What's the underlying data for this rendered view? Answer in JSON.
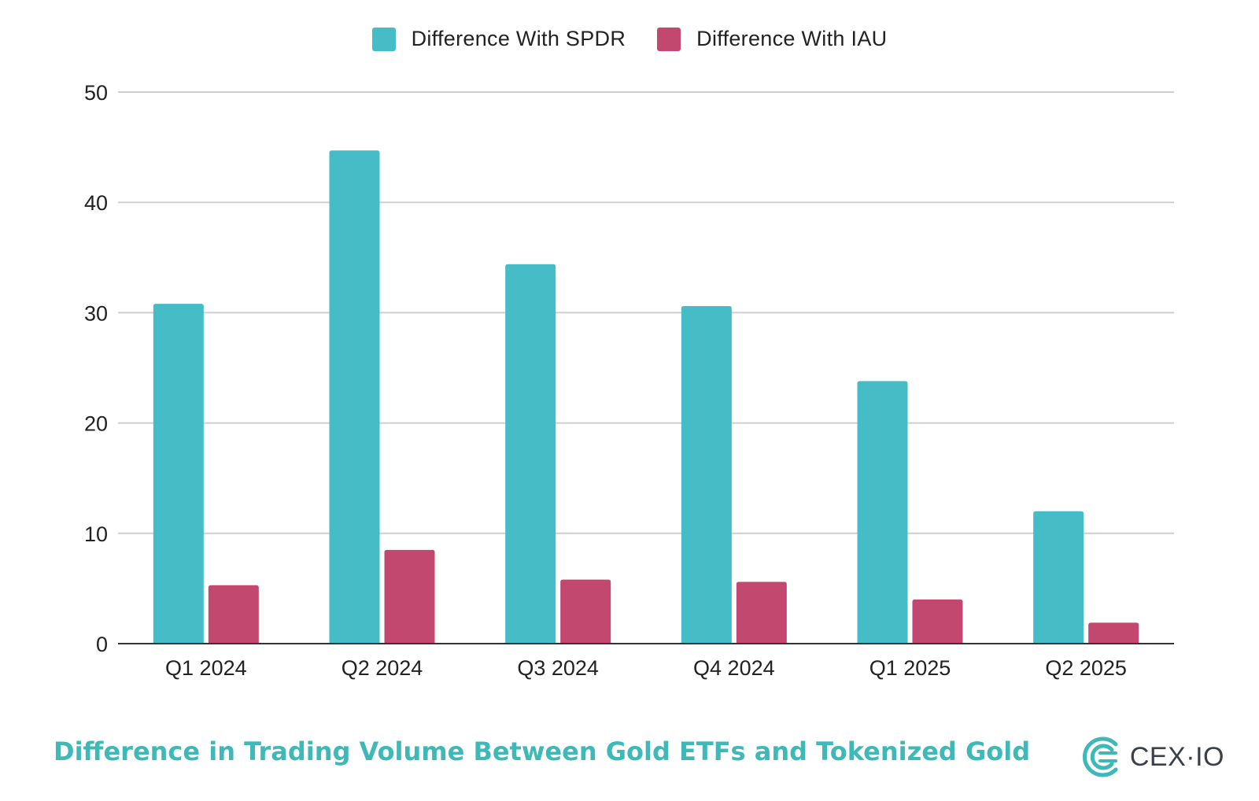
{
  "legend": {
    "items": [
      {
        "label": "Difference With SPDR",
        "color": "#45bcc6"
      },
      {
        "label": "Difference With IAU",
        "color": "#c2486f"
      }
    ]
  },
  "footer": {
    "title": "Difference in Trading Volume Between Gold ETFs and Tokenized Gold",
    "brand": "CEX·IO",
    "title_color": "#3fb8b8"
  },
  "chart_data": {
    "type": "bar",
    "categories": [
      "Q1 2024",
      "Q2 2024",
      "Q3 2024",
      "Q4 2024",
      "Q1 2025",
      "Q2 2025"
    ],
    "series": [
      {
        "name": "Difference With SPDR",
        "color": "#45bcc6",
        "values": [
          30.8,
          44.7,
          34.4,
          30.6,
          23.8,
          12.0
        ]
      },
      {
        "name": "Difference With IAU",
        "color": "#c2486f",
        "values": [
          5.3,
          8.5,
          5.8,
          5.6,
          4.0,
          1.9
        ]
      }
    ],
    "y_ticks": [
      "0",
      "10",
      "20",
      "30",
      "40",
      "50"
    ],
    "ylim": [
      0,
      50
    ],
    "title": "",
    "xlabel": "",
    "ylabel": "",
    "grid": true,
    "legend_position": "top-center"
  }
}
